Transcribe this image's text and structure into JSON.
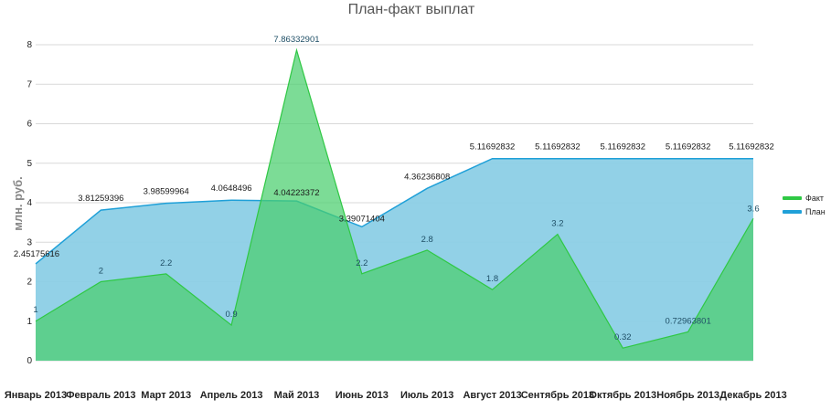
{
  "chart_data": {
    "type": "area",
    "title": "План-факт выплат",
    "ylabel": "млн. руб.",
    "xlabel": "",
    "ylim": [
      0,
      8
    ],
    "yticks": [
      "0",
      "1",
      "2",
      "3",
      "4",
      "5",
      "6",
      "7",
      "8"
    ],
    "grid": true,
    "legend_position": "right",
    "categories": [
      "Январь 2013",
      "Февраль 2013",
      "Март 2013",
      "Апрель 2013",
      "Май 2013",
      "Июнь 2013",
      "Июль 2013",
      "Август 2013",
      "Сентябрь 2013",
      "Октябрь 2013",
      "Ноябрь 2013",
      "Декабрь 2013"
    ],
    "series": [
      {
        "name": "План",
        "color": "#1fa0d8",
        "fill": "#8ccfe6",
        "values": [
          2.45175616,
          3.81259396,
          3.98599964,
          4.0648496,
          4.04223372,
          3.39071404,
          4.36236808,
          5.11692832,
          5.11692832,
          5.11692832,
          5.11692832,
          5.11692832
        ],
        "labels": [
          "2.45175616",
          "3.81259396",
          "3.98599964",
          "4.0648496",
          "4.04223372",
          "3.39071404",
          "4.36236808",
          "5.11692832",
          "5.11692832",
          "5.11692832",
          "5.11692832",
          "5.11692832"
        ]
      },
      {
        "name": "Факт",
        "color": "#2fc844",
        "fill": "#49cf6e",
        "values": [
          1,
          2,
          2.2,
          0.9,
          7.86332901,
          2.2,
          2.8,
          1.8,
          3.2,
          0.32,
          0.72963801,
          3.6
        ],
        "labels": [
          "1",
          "2",
          "2.2",
          "0.9",
          "7.86332901",
          "2.2",
          "2.8",
          "1.8",
          "3.2",
          "0.32",
          "0.72963801",
          "3.6"
        ]
      }
    ]
  }
}
